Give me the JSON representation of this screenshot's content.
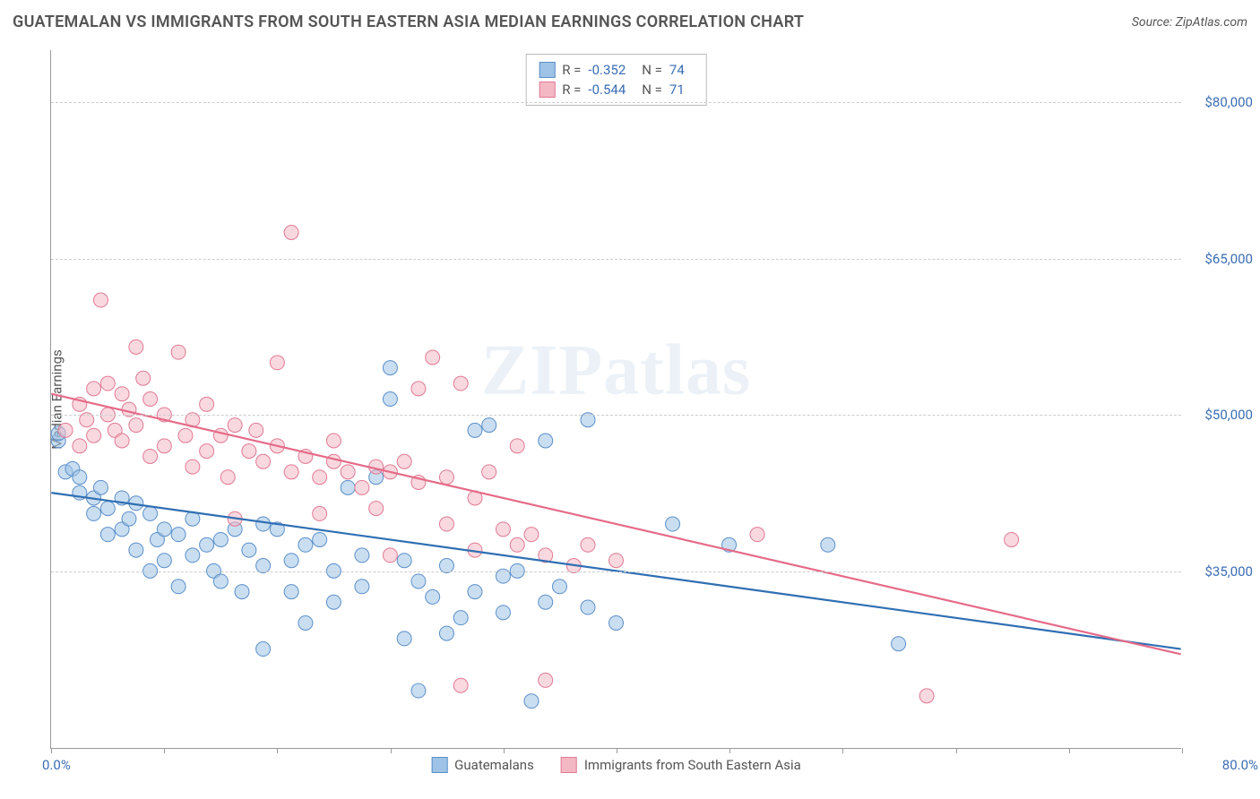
{
  "title": "GUATEMALAN VS IMMIGRANTS FROM SOUTH EASTERN ASIA MEDIAN EARNINGS CORRELATION CHART",
  "source": "Source: ZipAtlas.com",
  "watermark": "ZIPatlas",
  "y_axis_label": "Median Earnings",
  "chart": {
    "type": "scatter",
    "xlim": [
      0,
      80
    ],
    "ylim": [
      18000,
      85000
    ],
    "x_min_label": "0.0%",
    "x_max_label": "80.0%",
    "x_tick_positions": [
      0,
      8,
      16,
      24,
      32,
      40,
      48,
      56,
      64,
      72,
      80
    ],
    "y_ticks": [
      {
        "value": 35000,
        "label": "$35,000"
      },
      {
        "value": 50000,
        "label": "$50,000"
      },
      {
        "value": 65000,
        "label": "$65,000"
      },
      {
        "value": 80000,
        "label": "$80,000"
      }
    ],
    "background_color": "#ffffff",
    "grid_color": "#cccccc",
    "axis_color": "#999999",
    "marker_radius": 8,
    "marker_opacity": 0.55,
    "line_width": 2.2,
    "series": [
      {
        "id": "guatemalans",
        "label": "Guatemalans",
        "fill_color": "#9ec3e6",
        "stroke_color": "#5a8fc9",
        "line_color": "#2f6fb3",
        "R": "-0.352",
        "N": "74",
        "trend": {
          "x1": 0,
          "y1": 42500,
          "x2": 80,
          "y2": 27500
        },
        "points": [
          {
            "x": 0.5,
            "y": 47500
          },
          {
            "x": 0.5,
            "y": 48200
          },
          {
            "x": 1,
            "y": 44500
          },
          {
            "x": 1.5,
            "y": 44800
          },
          {
            "x": 2,
            "y": 42500
          },
          {
            "x": 2,
            "y": 44000
          },
          {
            "x": 3,
            "y": 42000
          },
          {
            "x": 3,
            "y": 40500
          },
          {
            "x": 3.5,
            "y": 43000
          },
          {
            "x": 4,
            "y": 41000
          },
          {
            "x": 4,
            "y": 38500
          },
          {
            "x": 5,
            "y": 42000
          },
          {
            "x": 5,
            "y": 39000
          },
          {
            "x": 5.5,
            "y": 40000
          },
          {
            "x": 6,
            "y": 41500
          },
          {
            "x": 6,
            "y": 37000
          },
          {
            "x": 7,
            "y": 40500
          },
          {
            "x": 7,
            "y": 35000
          },
          {
            "x": 7.5,
            "y": 38000
          },
          {
            "x": 8,
            "y": 39000
          },
          {
            "x": 8,
            "y": 36000
          },
          {
            "x": 9,
            "y": 38500
          },
          {
            "x": 9,
            "y": 33500
          },
          {
            "x": 10,
            "y": 40000
          },
          {
            "x": 10,
            "y": 36500
          },
          {
            "x": 11,
            "y": 37500
          },
          {
            "x": 11.5,
            "y": 35000
          },
          {
            "x": 12,
            "y": 38000
          },
          {
            "x": 12,
            "y": 34000
          },
          {
            "x": 13,
            "y": 39000
          },
          {
            "x": 13.5,
            "y": 33000
          },
          {
            "x": 14,
            "y": 37000
          },
          {
            "x": 15,
            "y": 39500
          },
          {
            "x": 15,
            "y": 35500
          },
          {
            "x": 15,
            "y": 27500
          },
          {
            "x": 16,
            "y": 39000
          },
          {
            "x": 17,
            "y": 36000
          },
          {
            "x": 17,
            "y": 33000
          },
          {
            "x": 18,
            "y": 37500
          },
          {
            "x": 18,
            "y": 30000
          },
          {
            "x": 19,
            "y": 38000
          },
          {
            "x": 20,
            "y": 35000
          },
          {
            "x": 20,
            "y": 32000
          },
          {
            "x": 21,
            "y": 43000
          },
          {
            "x": 22,
            "y": 36500
          },
          {
            "x": 22,
            "y": 33500
          },
          {
            "x": 23,
            "y": 44000
          },
          {
            "x": 24,
            "y": 51500
          },
          {
            "x": 24,
            "y": 54500
          },
          {
            "x": 25,
            "y": 36000
          },
          {
            "x": 25,
            "y": 28500
          },
          {
            "x": 26,
            "y": 34000
          },
          {
            "x": 26,
            "y": 23500
          },
          {
            "x": 27,
            "y": 32500
          },
          {
            "x": 28,
            "y": 29000
          },
          {
            "x": 28,
            "y": 35500
          },
          {
            "x": 29,
            "y": 30500
          },
          {
            "x": 30,
            "y": 33000
          },
          {
            "x": 30,
            "y": 48500
          },
          {
            "x": 31,
            "y": 49000
          },
          {
            "x": 32,
            "y": 34500
          },
          {
            "x": 32,
            "y": 31000
          },
          {
            "x": 33,
            "y": 35000
          },
          {
            "x": 34,
            "y": 22500
          },
          {
            "x": 35,
            "y": 32000
          },
          {
            "x": 35,
            "y": 47500
          },
          {
            "x": 36,
            "y": 33500
          },
          {
            "x": 38,
            "y": 31500
          },
          {
            "x": 38,
            "y": 49500
          },
          {
            "x": 40,
            "y": 30000
          },
          {
            "x": 44,
            "y": 39500
          },
          {
            "x": 48,
            "y": 37500
          },
          {
            "x": 55,
            "y": 37500
          },
          {
            "x": 60,
            "y": 28000
          }
        ]
      },
      {
        "id": "se_asia",
        "label": "Immigrants from South Eastern Asia",
        "fill_color": "#f4b8c4",
        "stroke_color": "#e07a94",
        "line_color": "#e56b88",
        "R": "-0.544",
        "N": "71",
        "trend": {
          "x1": 0,
          "y1": 52000,
          "x2": 80,
          "y2": 27000
        },
        "points": [
          {
            "x": 1,
            "y": 48500
          },
          {
            "x": 2,
            "y": 51000
          },
          {
            "x": 2,
            "y": 47000
          },
          {
            "x": 2.5,
            "y": 49500
          },
          {
            "x": 3,
            "y": 52500
          },
          {
            "x": 3,
            "y": 48000
          },
          {
            "x": 3.5,
            "y": 61000
          },
          {
            "x": 4,
            "y": 53000
          },
          {
            "x": 4,
            "y": 50000
          },
          {
            "x": 4.5,
            "y": 48500
          },
          {
            "x": 5,
            "y": 52000
          },
          {
            "x": 5,
            "y": 47500
          },
          {
            "x": 5.5,
            "y": 50500
          },
          {
            "x": 6,
            "y": 56500
          },
          {
            "x": 6,
            "y": 49000
          },
          {
            "x": 6.5,
            "y": 53500
          },
          {
            "x": 7,
            "y": 51500
          },
          {
            "x": 7,
            "y": 46000
          },
          {
            "x": 8,
            "y": 47000
          },
          {
            "x": 8,
            "y": 50000
          },
          {
            "x": 9,
            "y": 56000
          },
          {
            "x": 9.5,
            "y": 48000
          },
          {
            "x": 10,
            "y": 49500
          },
          {
            "x": 10,
            "y": 45000
          },
          {
            "x": 11,
            "y": 51000
          },
          {
            "x": 11,
            "y": 46500
          },
          {
            "x": 12,
            "y": 48000
          },
          {
            "x": 12.5,
            "y": 44000
          },
          {
            "x": 13,
            "y": 49000
          },
          {
            "x": 13,
            "y": 40000
          },
          {
            "x": 14,
            "y": 46500
          },
          {
            "x": 14.5,
            "y": 48500
          },
          {
            "x": 15,
            "y": 45500
          },
          {
            "x": 16,
            "y": 55000
          },
          {
            "x": 16,
            "y": 47000
          },
          {
            "x": 17,
            "y": 67500
          },
          {
            "x": 17,
            "y": 44500
          },
          {
            "x": 18,
            "y": 46000
          },
          {
            "x": 19,
            "y": 44000
          },
          {
            "x": 19,
            "y": 40500
          },
          {
            "x": 20,
            "y": 45500
          },
          {
            "x": 20,
            "y": 47500
          },
          {
            "x": 21,
            "y": 44500
          },
          {
            "x": 22,
            "y": 43000
          },
          {
            "x": 23,
            "y": 45000
          },
          {
            "x": 23,
            "y": 41000
          },
          {
            "x": 24,
            "y": 44500
          },
          {
            "x": 24,
            "y": 36500
          },
          {
            "x": 25,
            "y": 45500
          },
          {
            "x": 26,
            "y": 43500
          },
          {
            "x": 26,
            "y": 52500
          },
          {
            "x": 27,
            "y": 55500
          },
          {
            "x": 28,
            "y": 44000
          },
          {
            "x": 28,
            "y": 39500
          },
          {
            "x": 29,
            "y": 53000
          },
          {
            "x": 30,
            "y": 42000
          },
          {
            "x": 30,
            "y": 37000
          },
          {
            "x": 31,
            "y": 44500
          },
          {
            "x": 32,
            "y": 39000
          },
          {
            "x": 33,
            "y": 37500
          },
          {
            "x": 33,
            "y": 47000
          },
          {
            "x": 34,
            "y": 38500
          },
          {
            "x": 35,
            "y": 36500
          },
          {
            "x": 35,
            "y": 24500
          },
          {
            "x": 37,
            "y": 35500
          },
          {
            "x": 38,
            "y": 37500
          },
          {
            "x": 40,
            "y": 36000
          },
          {
            "x": 50,
            "y": 38500
          },
          {
            "x": 62,
            "y": 23000
          },
          {
            "x": 68,
            "y": 38000
          },
          {
            "x": 29,
            "y": 24000
          }
        ]
      }
    ]
  },
  "stats_labels": {
    "R": "R  =",
    "N": "N  ="
  }
}
